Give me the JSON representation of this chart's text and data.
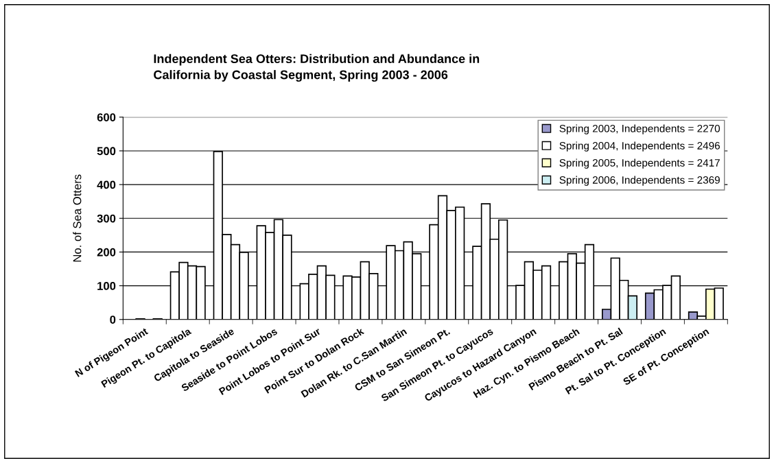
{
  "chart_data": {
    "type": "bar",
    "title": "Independent Sea Otters: Distribution and Abundance in\nCalifornia by Coastal Segment, Spring 2003 - 2006",
    "ylabel": "No. of Sea Otters",
    "categories": [
      "N of Pigeon Point",
      "Pigeon Pt. to Capitola",
      "Capitola to Seaside",
      "Seaside to Point Lobos",
      "Point Lobos to Point Sur",
      "Point Sur to Dolan Rock",
      "Dolan Rk. to C.San Martin",
      "CSM to San Simeon Pt.",
      "San Simeon Pt. to Cayucos",
      "Cayucos to Hazard Canyon",
      "Haz. Cyn. to Pismo Beach",
      "Pismo Beach to Pt. Sal",
      "Pt. Sal to Pt. Conception",
      "SE of Pt. Conception"
    ],
    "series": [
      {
        "name": "Spring 2003, Independents = 2270",
        "color": "#9999cc",
        "values": [
          null,
          141,
          498,
          278,
          106,
          129,
          219,
          281,
          217,
          101,
          171,
          30,
          78,
          22
        ],
        "colors": [
          "#ffffff",
          "#ffffff",
          "#ffffff",
          "#ffffff",
          "#ffffff",
          "#ffffff",
          "#ffffff",
          "#ffffff",
          "#ffffff",
          "#ffffff",
          "#ffffff",
          "#9999cc",
          "#9999cc",
          "#9999cc"
        ]
      },
      {
        "name": "Spring 2004, Independents = 2496",
        "color": "#ffffff",
        "values": [
          2,
          169,
          252,
          258,
          134,
          126,
          204,
          367,
          343,
          171,
          195,
          182,
          88,
          10
        ]
      },
      {
        "name": "Spring 2005, Independents = 2417",
        "color": "#ffffcc",
        "values": [
          null,
          159,
          222,
          296,
          159,
          171,
          230,
          323,
          238,
          146,
          167,
          116,
          101,
          90
        ],
        "colors": [
          "#ffffff",
          "#ffffff",
          "#ffffff",
          "#ffffff",
          "#ffffff",
          "#ffffff",
          "#ffffff",
          "#ffffff",
          "#ffffff",
          "#ffffff",
          "#ffffff",
          "#ffffff",
          "#ffffff",
          "#ffffcc"
        ]
      },
      {
        "name": "Spring 2006, Independents = 2369",
        "color": "#cceef2",
        "values": [
          2,
          157,
          199,
          250,
          131,
          136,
          195,
          333,
          295,
          159,
          222,
          70,
          129,
          93
        ],
        "colors": [
          "#ffffff",
          "#ffffff",
          "#ffffff",
          "#ffffff",
          "#ffffff",
          "#ffffff",
          "#ffffff",
          "#ffffff",
          "#ffffff",
          "#ffffff",
          "#ffffff",
          "#cceef2",
          "#ffffff",
          "#ffffff"
        ]
      }
    ],
    "ylim": [
      0,
      600
    ],
    "yticks": [
      0,
      100,
      200,
      300,
      400,
      500,
      600
    ],
    "grid": "y",
    "legend": "top right"
  }
}
